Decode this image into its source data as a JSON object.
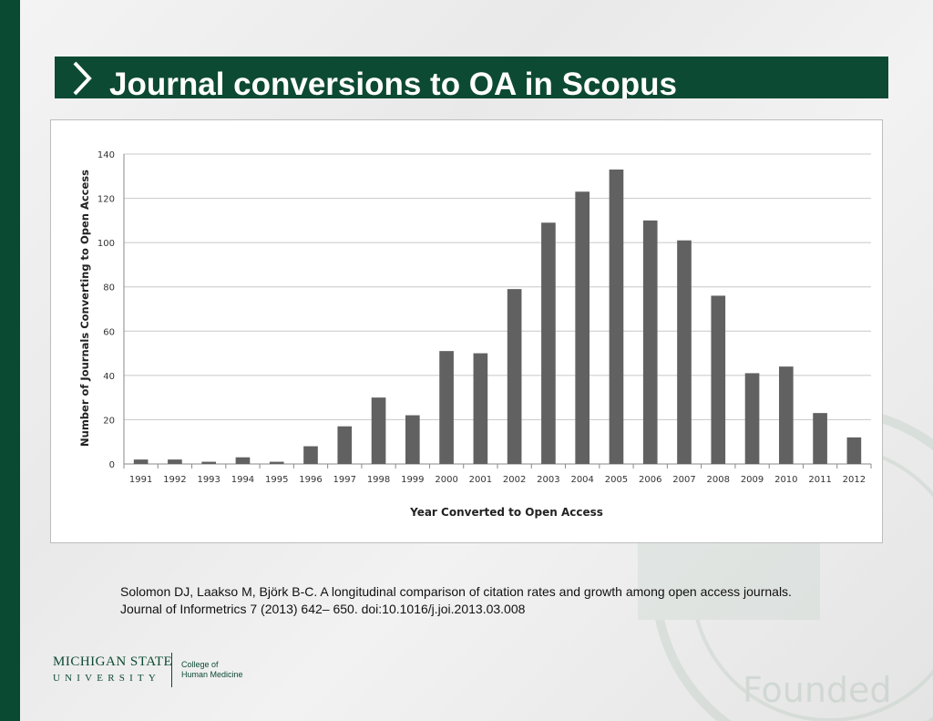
{
  "slide": {
    "title": "Journal conversions to OA in Scopus",
    "citation_line1": "Solomon DJ, Laakso M, Björk B-C. A longitudinal comparison of citation rates and growth among open access journals.",
    "citation_line2": "Journal of Informetrics  7 (2013) 642– 650. doi:10.1016/j.joi.2013.03.008",
    "logo_line1": "MICHIGAN STATE",
    "logo_line2": "UNIVERSITY",
    "college_line1": "College of",
    "college_line2": "Human Medicine",
    "watermark_text": "Founded",
    "colors": {
      "brand_green": "#0d4a33",
      "bar": "#616161"
    }
  },
  "chart_data": {
    "type": "bar",
    "title": "",
    "xlabel": "Year Converted to Open Access",
    "ylabel": "Number of Journals Converting to Open  Access",
    "categories": [
      "1991",
      "1992",
      "1993",
      "1994",
      "1995",
      "1996",
      "1997",
      "1998",
      "1999",
      "2000",
      "2001",
      "2002",
      "2003",
      "2004",
      "2005",
      "2006",
      "2007",
      "2008",
      "2009",
      "2010",
      "2011",
      "2012"
    ],
    "values": [
      2,
      2,
      1,
      3,
      1,
      8,
      17,
      30,
      22,
      51,
      50,
      79,
      109,
      123,
      133,
      110,
      101,
      76,
      41,
      44,
      23,
      12
    ],
    "ylim": [
      0,
      140
    ],
    "yticks": [
      "0",
      "20",
      "40",
      "60",
      "80",
      "100",
      "120",
      "140"
    ],
    "grid": true,
    "legend": "none"
  }
}
